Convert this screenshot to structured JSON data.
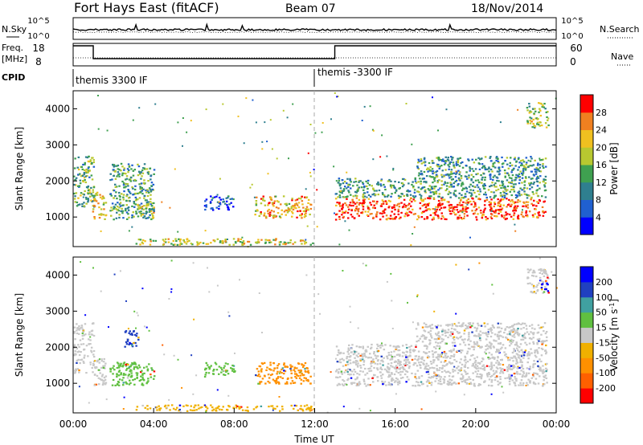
{
  "header": {
    "title": "Fort Hays East (fitACF)",
    "beam": "Beam 07",
    "date": "18/Nov/2014"
  },
  "top_panels": {
    "nsky_label": "N.Sky",
    "nsky_ticks": [
      "10^5",
      "10^0"
    ],
    "nsearch_label": "N.Search",
    "nsearch_ticks": [
      "10^5",
      "10^0"
    ],
    "freq_label": "Freq.",
    "freq_unit": "[MHz]",
    "freq_ticks": [
      "18",
      "8"
    ],
    "nave_label": "Nave",
    "nave_ticks": [
      "60",
      "0"
    ],
    "cpid_label": "CPID",
    "cpid_segments": [
      "themis 3300 IF",
      "themis -3300 IF"
    ],
    "freq_step_hours": [
      1.0,
      13.0
    ]
  },
  "chart_data": [
    {
      "type": "heatmap",
      "name": "Power",
      "ylabel": "Slant Range [km]",
      "xlabel": "",
      "x_range_hours": [
        0,
        24
      ],
      "y_range_km": [
        180,
        4500
      ],
      "yticks": [
        1000,
        2000,
        3000,
        4000
      ],
      "colorbar_label": "Power [dB]",
      "colorbar_ticks": [
        "28",
        "24",
        "20",
        "16",
        "12",
        "8",
        "4"
      ],
      "colorbar_colors": [
        "#0000ff",
        "#2060d0",
        "#2f7f8f",
        "#3fa050",
        "#b8c830",
        "#f0c020",
        "#f08020",
        "#ff0000"
      ],
      "scatter_regions": [
        {
          "t0": 0.0,
          "t1": 1.0,
          "r0": 1300,
          "r1": 2700,
          "level": 0.45
        },
        {
          "t0": 0.9,
          "t1": 1.6,
          "r0": 950,
          "r1": 1700,
          "level": 0.65
        },
        {
          "t0": 1.8,
          "t1": 4.0,
          "r0": 950,
          "r1": 2500,
          "level": 0.4
        },
        {
          "t0": 3.0,
          "t1": 4.0,
          "r0": 1000,
          "r1": 1400,
          "level": 0.55
        },
        {
          "t0": 6.5,
          "t1": 8.0,
          "r0": 1200,
          "r1": 1600,
          "level": 0.2
        },
        {
          "t0": 9.0,
          "t1": 11.8,
          "r0": 1000,
          "r1": 1600,
          "level": 0.7
        },
        {
          "t0": 3.0,
          "t1": 12.0,
          "r0": 250,
          "r1": 420,
          "level": 0.6
        },
        {
          "t0": 13.0,
          "t1": 23.5,
          "r0": 950,
          "r1": 1550,
          "level": 0.9
        },
        {
          "t0": 13.0,
          "t1": 23.5,
          "r0": 1550,
          "r1": 2100,
          "level": 0.4
        },
        {
          "t0": 17.0,
          "t1": 23.5,
          "r0": 2100,
          "r1": 2700,
          "level": 0.35
        },
        {
          "t0": 22.5,
          "t1": 23.6,
          "r0": 3500,
          "r1": 4200,
          "level": 0.55
        }
      ]
    },
    {
      "type": "heatmap",
      "name": "Velocity",
      "ylabel": "Slant Range [km]",
      "xlabel": "Time UT",
      "x_range_hours": [
        0,
        24
      ],
      "xticks": [
        "00:00",
        "04:00",
        "08:00",
        "12:00",
        "16:00",
        "20:00",
        "00:00"
      ],
      "y_range_km": [
        180,
        4500
      ],
      "yticks": [
        1000,
        2000,
        3000,
        4000
      ],
      "colorbar_label": "Velocity [m s^-1]",
      "colorbar_ticks": [
        "200",
        "100",
        "50",
        "15",
        "-15",
        "-50",
        "-100",
        "-200"
      ],
      "colorbar_colors": [
        "#ff0000",
        "#ff6000",
        "#ff9000",
        "#f0b000",
        "#c8c8c8",
        "#60c040",
        "#40a0a0",
        "#2040c0",
        "#0000ff"
      ],
      "scatter_regions": [
        {
          "t0": 0.0,
          "t1": 1.0,
          "r0": 1300,
          "r1": 2700,
          "color": "#c8c8c8"
        },
        {
          "t0": 0.9,
          "t1": 1.6,
          "r0": 950,
          "r1": 1700,
          "color": "#c8c8c8"
        },
        {
          "t0": 1.8,
          "t1": 4.0,
          "r0": 950,
          "r1": 1600,
          "color": "#60c040"
        },
        {
          "t0": 2.5,
          "t1": 3.2,
          "r0": 2000,
          "r1": 2500,
          "color": "#2040c0"
        },
        {
          "t0": 6.5,
          "t1": 8.0,
          "r0": 1200,
          "r1": 1600,
          "color": "#60c040"
        },
        {
          "t0": 9.0,
          "t1": 11.8,
          "r0": 1000,
          "r1": 1600,
          "color": "#ff9000"
        },
        {
          "t0": 3.0,
          "t1": 12.0,
          "r0": 250,
          "r1": 420,
          "color": "#f0b000"
        },
        {
          "t0": 13.0,
          "t1": 23.5,
          "r0": 950,
          "r1": 2100,
          "color": "#c8c8c8"
        },
        {
          "t0": 17.0,
          "t1": 23.5,
          "r0": 2100,
          "r1": 2700,
          "color": "#c8c8c8"
        },
        {
          "t0": 22.5,
          "t1": 23.6,
          "r0": 3500,
          "r1": 4200,
          "color": "#c8c8c8"
        },
        {
          "t0": 23.2,
          "t1": 23.6,
          "r0": 3500,
          "r1": 3800,
          "color": "#0000ff"
        }
      ]
    }
  ]
}
